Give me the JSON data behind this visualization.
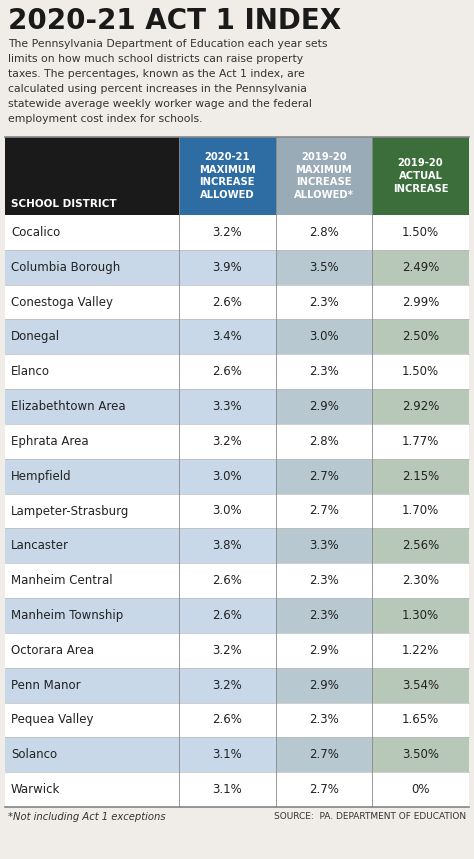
{
  "title": "2020-21 ACT 1 INDEX",
  "desc_lines": [
    "The Pennsylvania Department of Education each year sets",
    "limits on how much school districts can raise property",
    "taxes. The percentages, known as the Act 1 index, are",
    "calculated using percent increases in the Pennsylvania",
    "statewide average weekly worker wage and the federal",
    "employment cost index for schools."
  ],
  "col_headers": [
    "SCHOOL DISTRICT",
    "2020-21\nMAXIMUM\nINCREASE\nALLOWED",
    "2019-20\nMAXIMUM\nINCREASE\nALLOWED*",
    "2019-20\nACTUAL\nINCREASE"
  ],
  "header_bg_colors": [
    "#1a1a1a",
    "#2e6da4",
    "#9aabb8",
    "#3b6e3b"
  ],
  "header_text_color": "#ffffff",
  "rows": [
    {
      "district": "Cocalico",
      "col1": "3.2%",
      "col2": "2.8%",
      "col3": "1.50%",
      "shaded": false
    },
    {
      "district": "Columbia Borough",
      "col1": "3.9%",
      "col2": "3.5%",
      "col3": "2.49%",
      "shaded": true
    },
    {
      "district": "Conestoga Valley",
      "col1": "2.6%",
      "col2": "2.3%",
      "col3": "2.99%",
      "shaded": false
    },
    {
      "district": "Donegal",
      "col1": "3.4%",
      "col2": "3.0%",
      "col3": "2.50%",
      "shaded": true
    },
    {
      "district": "Elanco",
      "col1": "2.6%",
      "col2": "2.3%",
      "col3": "1.50%",
      "shaded": false
    },
    {
      "district": "Elizabethtown Area",
      "col1": "3.3%",
      "col2": "2.9%",
      "col3": "2.92%",
      "shaded": true
    },
    {
      "district": "Ephrata Area",
      "col1": "3.2%",
      "col2": "2.8%",
      "col3": "1.77%",
      "shaded": false
    },
    {
      "district": "Hempfield",
      "col1": "3.0%",
      "col2": "2.7%",
      "col3": "2.15%",
      "shaded": true
    },
    {
      "district": "Lampeter-Strasburg",
      "col1": "3.0%",
      "col2": "2.7%",
      "col3": "1.70%",
      "shaded": false
    },
    {
      "district": "Lancaster",
      "col1": "3.8%",
      "col2": "3.3%",
      "col3": "2.56%",
      "shaded": true
    },
    {
      "district": "Manheim Central",
      "col1": "2.6%",
      "col2": "2.3%",
      "col3": "2.30%",
      "shaded": false
    },
    {
      "district": "Manheim Township",
      "col1": "2.6%",
      "col2": "2.3%",
      "col3": "1.30%",
      "shaded": true
    },
    {
      "district": "Octorara Area",
      "col1": "3.2%",
      "col2": "2.9%",
      "col3": "1.22%",
      "shaded": false
    },
    {
      "district": "Penn Manor",
      "col1": "3.2%",
      "col2": "2.9%",
      "col3": "3.54%",
      "shaded": true
    },
    {
      "district": "Pequea Valley",
      "col1": "2.6%",
      "col2": "2.3%",
      "col3": "1.65%",
      "shaded": false
    },
    {
      "district": "Solanco",
      "col1": "3.1%",
      "col2": "2.7%",
      "col3": "3.50%",
      "shaded": true
    },
    {
      "district": "Warwick",
      "col1": "3.1%",
      "col2": "2.7%",
      "col3": "0%",
      "shaded": false
    }
  ],
  "shaded_col01_bg": "#c8d8e8",
  "shaded_col2_bg": "#b8c8d0",
  "shaded_col3_bg": "#b8c8b8",
  "plain_bg": "#ffffff",
  "footnote": "*Not including Act 1 exceptions",
  "source": "SOURCE:  PA. DEPARTMENT OF EDUCATION",
  "bg_color": "#f0ede8",
  "title_color": "#1a1a1a",
  "body_text_color": "#333333",
  "row_text_color": "#222222",
  "sep_line_color": "#bbbbbb",
  "border_color": "#888888"
}
